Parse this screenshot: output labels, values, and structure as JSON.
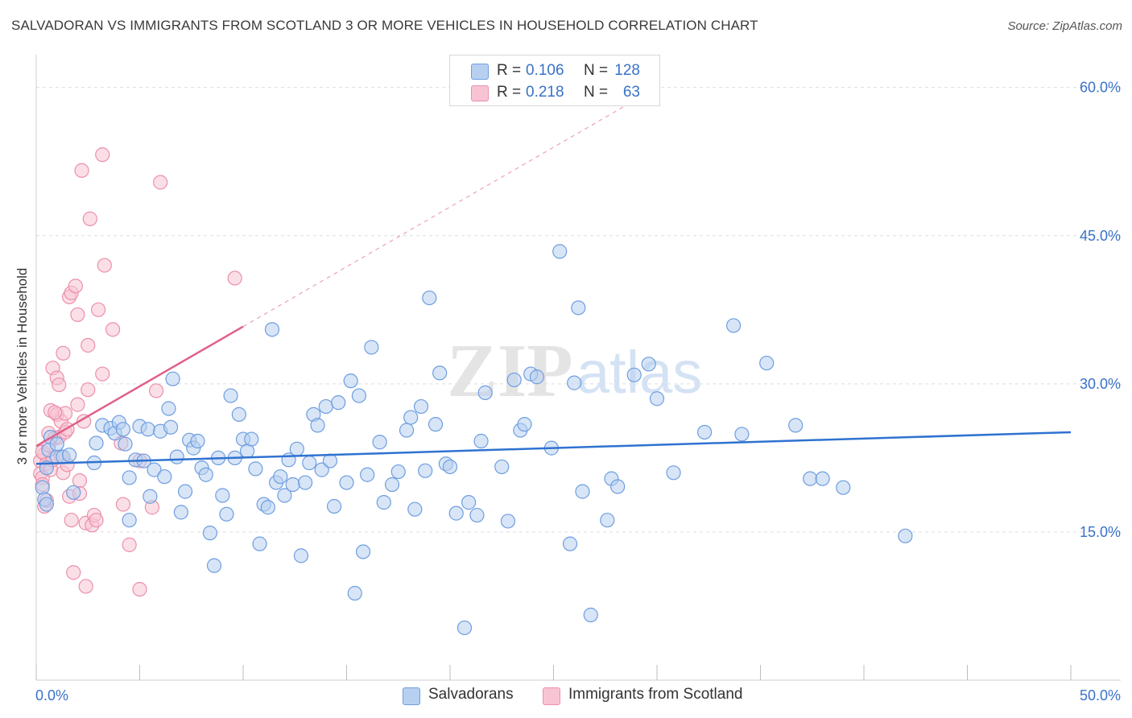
{
  "header": {
    "title": "SALVADORAN VS IMMIGRANTS FROM SCOTLAND 3 OR MORE VEHICLES IN HOUSEHOLD CORRELATION CHART",
    "source": "Source: ZipAtlas.com"
  },
  "watermark": {
    "part1": "ZIP",
    "part2": "atlas"
  },
  "legend": {
    "rows": [
      {
        "r_label": "R =",
        "r_value": "0.106",
        "n_label": "N =",
        "n_value": "128"
      },
      {
        "r_label": "R =",
        "r_value": "0.218",
        "n_label": "N =",
        "n_value": "63"
      }
    ],
    "series_labels": [
      "Salvadorans",
      "Immigrants from Scotland"
    ]
  },
  "colors": {
    "blue_fill": "#b8d0f0",
    "blue_stroke": "#6d9ee0",
    "blue_line": "#2f72d0",
    "pink_fill": "#f8c4d4",
    "pink_stroke": "#ec8fab",
    "pink_line": "#e0608a",
    "grid": "#dedede",
    "tick_text": "#3a72c8"
  },
  "chart_data": {
    "type": "scatter",
    "ylabel": "3 or more Vehicles in Household",
    "xlim": [
      0,
      50
    ],
    "ylim": [
      0,
      62.5
    ],
    "x_tick_labels": [
      "0.0%",
      "50.0%"
    ],
    "y_ticks": [
      15,
      30,
      45,
      60
    ],
    "y_tick_labels": [
      "15.0%",
      "30.0%",
      "45.0%",
      "60.0%"
    ],
    "grid": true,
    "series": [
      {
        "name": "Salvadorans",
        "trend": {
          "x": [
            0,
            50
          ],
          "y": [
            21.9,
            25.1
          ]
        },
        "points": [
          [
            0.3,
            19.5
          ],
          [
            0.4,
            18.3
          ],
          [
            0.5,
            17.8
          ],
          [
            0.5,
            21.5
          ],
          [
            0.6,
            23.3
          ],
          [
            0.7,
            24.6
          ],
          [
            1.0,
            22.6
          ],
          [
            1.0,
            23.9
          ],
          [
            1.3,
            22.6
          ],
          [
            1.6,
            22.8
          ],
          [
            1.8,
            19.0
          ],
          [
            2.8,
            22.0
          ],
          [
            2.9,
            24.0
          ],
          [
            3.2,
            25.8
          ],
          [
            3.6,
            25.5
          ],
          [
            3.8,
            25.0
          ],
          [
            4.0,
            26.1
          ],
          [
            4.2,
            25.4
          ],
          [
            4.3,
            23.9
          ],
          [
            4.5,
            20.5
          ],
          [
            4.5,
            16.2
          ],
          [
            4.8,
            22.3
          ],
          [
            5.0,
            25.7
          ],
          [
            5.2,
            22.2
          ],
          [
            5.4,
            25.4
          ],
          [
            5.5,
            18.6
          ],
          [
            5.7,
            21.3
          ],
          [
            6.0,
            25.2
          ],
          [
            6.2,
            20.6
          ],
          [
            6.4,
            27.5
          ],
          [
            6.5,
            25.6
          ],
          [
            6.6,
            30.5
          ],
          [
            6.8,
            22.6
          ],
          [
            7.0,
            17.0
          ],
          [
            7.2,
            19.1
          ],
          [
            7.4,
            24.3
          ],
          [
            7.6,
            23.5
          ],
          [
            7.8,
            24.2
          ],
          [
            8.0,
            21.5
          ],
          [
            8.2,
            20.8
          ],
          [
            8.4,
            14.9
          ],
          [
            8.6,
            11.6
          ],
          [
            8.8,
            22.5
          ],
          [
            9.0,
            18.7
          ],
          [
            9.2,
            16.8
          ],
          [
            9.4,
            28.8
          ],
          [
            9.6,
            22.5
          ],
          [
            9.8,
            26.9
          ],
          [
            10.0,
            24.4
          ],
          [
            10.2,
            23.2
          ],
          [
            10.4,
            24.4
          ],
          [
            10.6,
            21.4
          ],
          [
            10.8,
            13.8
          ],
          [
            11.0,
            17.8
          ],
          [
            11.2,
            17.5
          ],
          [
            11.4,
            35.5
          ],
          [
            11.6,
            20.0
          ],
          [
            11.8,
            20.6
          ],
          [
            12.0,
            18.7
          ],
          [
            12.2,
            22.3
          ],
          [
            12.4,
            19.8
          ],
          [
            12.6,
            23.4
          ],
          [
            12.8,
            12.6
          ],
          [
            13.0,
            20.0
          ],
          [
            13.2,
            22.0
          ],
          [
            13.4,
            26.9
          ],
          [
            13.6,
            25.8
          ],
          [
            13.8,
            21.3
          ],
          [
            14.0,
            27.7
          ],
          [
            14.2,
            22.2
          ],
          [
            14.4,
            17.6
          ],
          [
            14.6,
            28.1
          ],
          [
            15.0,
            20.0
          ],
          [
            15.2,
            30.3
          ],
          [
            15.4,
            8.8
          ],
          [
            15.6,
            28.8
          ],
          [
            15.8,
            13.0
          ],
          [
            16.0,
            20.8
          ],
          [
            16.2,
            33.7
          ],
          [
            16.6,
            24.1
          ],
          [
            16.8,
            18.0
          ],
          [
            17.2,
            19.8
          ],
          [
            17.5,
            21.1
          ],
          [
            17.9,
            25.3
          ],
          [
            18.1,
            26.6
          ],
          [
            18.3,
            17.3
          ],
          [
            18.6,
            27.7
          ],
          [
            18.8,
            21.2
          ],
          [
            19.0,
            38.7
          ],
          [
            19.3,
            25.9
          ],
          [
            19.5,
            31.1
          ],
          [
            19.8,
            21.9
          ],
          [
            20.0,
            21.6
          ],
          [
            20.3,
            16.9
          ],
          [
            20.7,
            5.3
          ],
          [
            20.9,
            18.0
          ],
          [
            21.3,
            16.7
          ],
          [
            21.5,
            24.2
          ],
          [
            21.7,
            29.1
          ],
          [
            22.5,
            21.6
          ],
          [
            22.8,
            16.1
          ],
          [
            23.1,
            30.4
          ],
          [
            23.4,
            25.3
          ],
          [
            23.6,
            25.9
          ],
          [
            23.9,
            31.0
          ],
          [
            24.2,
            30.7
          ],
          [
            24.9,
            23.5
          ],
          [
            25.3,
            43.4
          ],
          [
            25.8,
            13.8
          ],
          [
            26.0,
            30.1
          ],
          [
            26.2,
            37.7
          ],
          [
            26.4,
            19.1
          ],
          [
            26.8,
            6.6
          ],
          [
            27.6,
            16.2
          ],
          [
            27.8,
            20.4
          ],
          [
            28.1,
            19.6
          ],
          [
            28.9,
            30.9
          ],
          [
            29.6,
            32.0
          ],
          [
            30.0,
            28.5
          ],
          [
            30.8,
            21.0
          ],
          [
            32.3,
            25.1
          ],
          [
            33.7,
            35.9
          ],
          [
            34.1,
            24.9
          ],
          [
            35.3,
            32.1
          ],
          [
            36.7,
            25.8
          ],
          [
            37.4,
            20.4
          ],
          [
            38.0,
            20.4
          ],
          [
            39.0,
            19.5
          ],
          [
            42.0,
            14.6
          ]
        ]
      },
      {
        "name": "Immigrants from Scotland",
        "trend": {
          "x": [
            0,
            10
          ],
          "y": [
            23.7,
            35.8
          ]
        },
        "trend_ext": {
          "x": [
            10,
            30
          ],
          "y": [
            35.8,
            60.0
          ]
        },
        "points": [
          [
            0.2,
            22.2
          ],
          [
            0.2,
            20.9
          ],
          [
            0.3,
            20.5
          ],
          [
            0.3,
            19.8
          ],
          [
            0.4,
            22.9
          ],
          [
            0.4,
            17.6
          ],
          [
            0.5,
            21.9
          ],
          [
            0.5,
            18.2
          ],
          [
            0.6,
            25.0
          ],
          [
            0.7,
            21.3
          ],
          [
            0.7,
            27.3
          ],
          [
            0.8,
            31.6
          ],
          [
            0.8,
            22.3
          ],
          [
            0.9,
            24.5
          ],
          [
            1.0,
            26.9
          ],
          [
            1.0,
            30.6
          ],
          [
            1.1,
            24.6
          ],
          [
            1.1,
            29.9
          ],
          [
            1.2,
            26.2
          ],
          [
            1.2,
            22.6
          ],
          [
            1.3,
            33.1
          ],
          [
            1.3,
            21.0
          ],
          [
            1.4,
            25.1
          ],
          [
            1.4,
            27.0
          ],
          [
            1.5,
            25.4
          ],
          [
            1.5,
            21.8
          ],
          [
            1.6,
            38.8
          ],
          [
            1.6,
            18.6
          ],
          [
            1.7,
            39.2
          ],
          [
            1.7,
            16.2
          ],
          [
            1.8,
            10.9
          ],
          [
            1.9,
            39.9
          ],
          [
            2.0,
            37.0
          ],
          [
            2.0,
            27.9
          ],
          [
            2.1,
            20.2
          ],
          [
            2.1,
            18.9
          ],
          [
            2.2,
            51.6
          ],
          [
            2.3,
            26.2
          ],
          [
            2.4,
            9.5
          ],
          [
            2.4,
            15.9
          ],
          [
            2.5,
            29.4
          ],
          [
            2.5,
            33.9
          ],
          [
            2.6,
            46.7
          ],
          [
            2.7,
            15.7
          ],
          [
            2.8,
            16.7
          ],
          [
            2.9,
            16.2
          ],
          [
            3.0,
            37.5
          ],
          [
            3.2,
            31.0
          ],
          [
            3.2,
            53.2
          ],
          [
            3.3,
            42.0
          ],
          [
            3.7,
            35.5
          ],
          [
            4.1,
            24.0
          ],
          [
            4.2,
            17.8
          ],
          [
            4.5,
            13.7
          ],
          [
            5.0,
            22.2
          ],
          [
            5.0,
            9.2
          ],
          [
            5.6,
            17.5
          ],
          [
            5.8,
            29.3
          ],
          [
            6.0,
            50.4
          ],
          [
            9.6,
            40.7
          ],
          [
            0.3,
            23.1
          ],
          [
            0.6,
            23.8
          ],
          [
            0.9,
            27.1
          ]
        ]
      }
    ]
  }
}
